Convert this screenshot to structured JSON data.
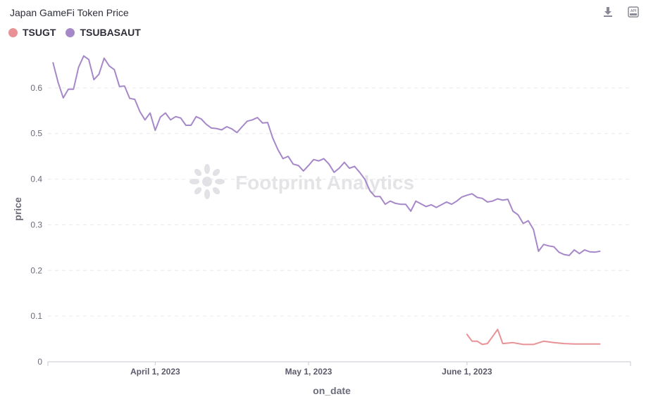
{
  "chart_title": "Japan GameFi Token Price",
  "watermark": "Footprint Analytics",
  "toolbar": {
    "download_icon": "download-icon",
    "api_icon": "api-icon"
  },
  "chart_data": {
    "type": "line",
    "xlabel": "on_date",
    "ylabel": "price",
    "ylim": [
      0,
      0.6
    ],
    "yticks": [
      0,
      0.1,
      0.2,
      0.3,
      0.4,
      0.5,
      0.6
    ],
    "xlim": [
      "2023-03-11",
      "2023-07-03"
    ],
    "xticks": [
      {
        "date": "2023-04-01",
        "label": "April 1, 2023"
      },
      {
        "date": "2023-05-01",
        "label": "May 1, 2023"
      },
      {
        "date": "2023-06-01",
        "label": "June 1, 2023"
      }
    ],
    "grid": true,
    "legend": "top-left",
    "series": [
      {
        "name": "TSUGT",
        "color": "#e89296",
        "x": [
          "2023-06-01",
          "2023-06-02",
          "2023-06-03",
          "2023-06-04",
          "2023-06-05",
          "2023-06-06",
          "2023-06-07",
          "2023-06-08",
          "2023-06-10",
          "2023-06-12",
          "2023-06-14",
          "2023-06-16",
          "2023-06-18",
          "2023-06-20",
          "2023-06-22",
          "2023-06-24",
          "2023-06-27"
        ],
        "values": [
          0.06,
          0.045,
          0.045,
          0.038,
          0.04,
          0.055,
          0.071,
          0.04,
          0.042,
          0.038,
          0.038,
          0.045,
          0.042,
          0.04,
          0.039,
          0.039,
          0.039
        ]
      },
      {
        "name": "TSUBASAUT",
        "color": "#a688c8",
        "x": [
          "2023-03-12",
          "2023-03-13",
          "2023-03-14",
          "2023-03-15",
          "2023-03-16",
          "2023-03-17",
          "2023-03-18",
          "2023-03-19",
          "2023-03-20",
          "2023-03-21",
          "2023-03-22",
          "2023-03-23",
          "2023-03-24",
          "2023-03-25",
          "2023-03-26",
          "2023-03-27",
          "2023-03-28",
          "2023-03-29",
          "2023-03-30",
          "2023-03-31",
          "2023-04-01",
          "2023-04-02",
          "2023-04-03",
          "2023-04-04",
          "2023-04-05",
          "2023-04-06",
          "2023-04-07",
          "2023-04-08",
          "2023-04-09",
          "2023-04-10",
          "2023-04-11",
          "2023-04-12",
          "2023-04-13",
          "2023-04-14",
          "2023-04-15",
          "2023-04-16",
          "2023-04-17",
          "2023-04-18",
          "2023-04-19",
          "2023-04-20",
          "2023-04-21",
          "2023-04-22",
          "2023-04-23",
          "2023-04-24",
          "2023-04-25",
          "2023-04-26",
          "2023-04-27",
          "2023-04-28",
          "2023-04-29",
          "2023-04-30",
          "2023-05-01",
          "2023-05-02",
          "2023-05-03",
          "2023-05-04",
          "2023-05-05",
          "2023-05-06",
          "2023-05-07",
          "2023-05-08",
          "2023-05-09",
          "2023-05-10",
          "2023-05-11",
          "2023-05-12",
          "2023-05-13",
          "2023-05-14",
          "2023-05-15",
          "2023-05-16",
          "2023-05-17",
          "2023-05-18",
          "2023-05-19",
          "2023-05-20",
          "2023-05-21",
          "2023-05-22",
          "2023-05-23",
          "2023-05-24",
          "2023-05-25",
          "2023-05-26",
          "2023-05-27",
          "2023-05-28",
          "2023-05-29",
          "2023-05-30",
          "2023-05-31",
          "2023-06-01",
          "2023-06-02",
          "2023-06-03",
          "2023-06-04",
          "2023-06-05",
          "2023-06-06",
          "2023-06-07",
          "2023-06-08",
          "2023-06-09",
          "2023-06-10",
          "2023-06-11",
          "2023-06-12",
          "2023-06-13",
          "2023-06-14",
          "2023-06-15",
          "2023-06-16",
          "2023-06-17",
          "2023-06-18",
          "2023-06-19",
          "2023-06-20",
          "2023-06-21",
          "2023-06-22",
          "2023-06-23",
          "2023-06-24",
          "2023-06-25",
          "2023-06-26",
          "2023-06-27"
        ],
        "values": [
          0.655,
          0.612,
          0.578,
          0.597,
          0.597,
          0.645,
          0.67,
          0.662,
          0.618,
          0.63,
          0.665,
          0.648,
          0.64,
          0.603,
          0.604,
          0.577,
          0.575,
          0.548,
          0.53,
          0.545,
          0.507,
          0.536,
          0.545,
          0.53,
          0.537,
          0.534,
          0.518,
          0.518,
          0.537,
          0.532,
          0.52,
          0.512,
          0.511,
          0.508,
          0.515,
          0.51,
          0.502,
          0.515,
          0.527,
          0.53,
          0.535,
          0.523,
          0.524,
          0.49,
          0.465,
          0.445,
          0.45,
          0.433,
          0.43,
          0.418,
          0.43,
          0.443,
          0.44,
          0.445,
          0.433,
          0.415,
          0.424,
          0.437,
          0.424,
          0.428,
          0.415,
          0.4,
          0.375,
          0.362,
          0.362,
          0.345,
          0.352,
          0.347,
          0.345,
          0.345,
          0.33,
          0.352,
          0.346,
          0.34,
          0.344,
          0.338,
          0.344,
          0.35,
          0.345,
          0.352,
          0.361,
          0.365,
          0.368,
          0.36,
          0.358,
          0.35,
          0.352,
          0.357,
          0.354,
          0.356,
          0.33,
          0.322,
          0.303,
          0.309,
          0.29,
          0.242,
          0.257,
          0.254,
          0.252,
          0.24,
          0.235,
          0.233,
          0.245,
          0.237,
          0.245,
          0.241,
          0.24,
          0.242
        ]
      }
    ]
  }
}
